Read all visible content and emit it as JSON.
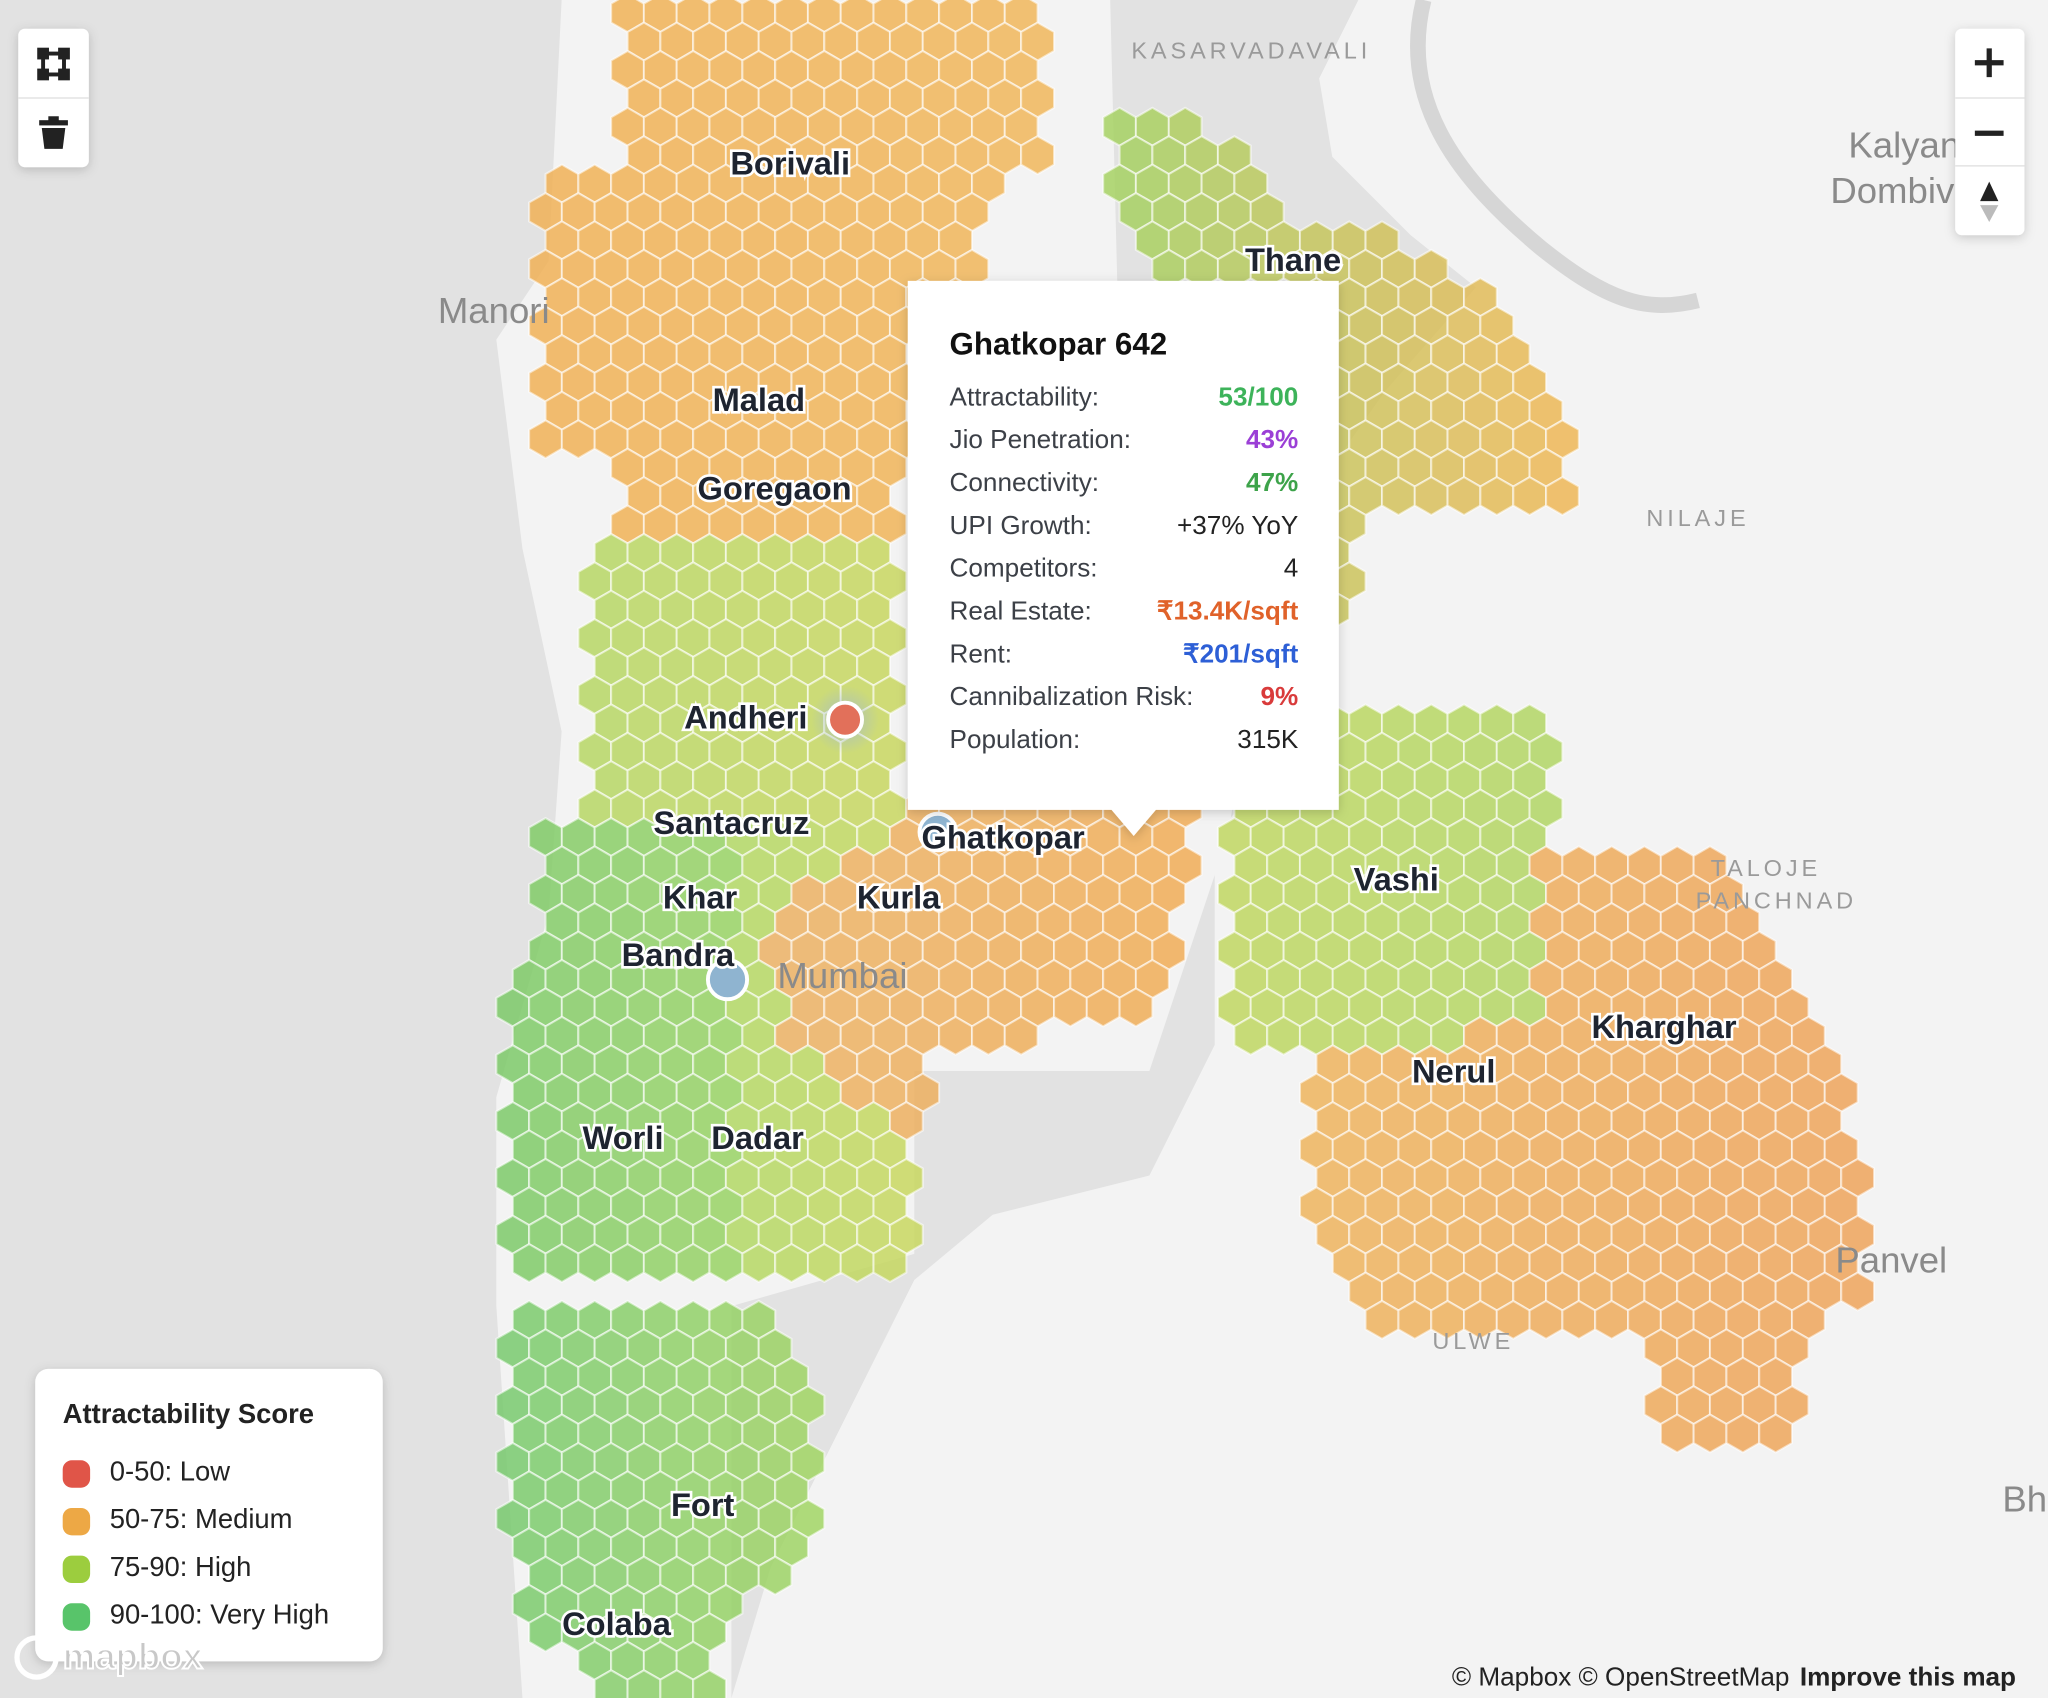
{
  "place_labels": [
    "Borivali",
    "Malad",
    "Goregaon",
    "Andheri",
    "Santacruz",
    "Khar",
    "Bandra",
    "Kurla",
    "Ghatkopar",
    "Worli",
    "Dadar",
    "Fort",
    "Colaba",
    "Thane",
    "Vashi",
    "Nerul",
    "Kharghar"
  ],
  "area_labels": [
    "KASARVADAVALI",
    "Manori",
    "NILAJE",
    "TALOJE",
    "PANCHNAD",
    "Kalyan",
    "Dombivli",
    "ULWE",
    "Panvel",
    "Mumbai",
    "Bha"
  ],
  "tooltip": {
    "title": "Ghatkopar 642",
    "rows": [
      {
        "label": "Attractability:",
        "value": "53/100"
      },
      {
        "label": "Jio Penetration:",
        "value": "43%"
      },
      {
        "label": "Connectivity:",
        "value": "47%"
      },
      {
        "label": "UPI Growth:",
        "value": "+37% YoY"
      },
      {
        "label": "Competitors:",
        "value": "4"
      },
      {
        "label": "Real Estate:",
        "value": "₹13.4K/sqft"
      },
      {
        "label": "Rent:",
        "value": "₹201/sqft"
      },
      {
        "label": "Cannibalization Risk:",
        "value": "9%"
      },
      {
        "label": "Population:",
        "value": "315K"
      }
    ]
  },
  "legend": {
    "title": "Attractability Score",
    "items": [
      "0-50: Low",
      "50-75: Medium",
      "75-90: High",
      "90-100: Very High"
    ]
  },
  "attribution": {
    "logo": "mapbox",
    "text": "© Mapbox © OpenStreetMap",
    "link": "Improve this map"
  }
}
